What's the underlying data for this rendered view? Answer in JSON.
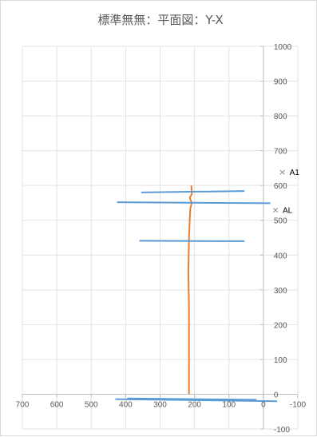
{
  "chart_data": {
    "type": "scatter",
    "title": "標準無無：平面図：Y-X",
    "xlabel": "",
    "ylabel": "",
    "xlim": [
      700,
      -100
    ],
    "ylim": [
      -100,
      1000
    ],
    "x_reversed": true,
    "x_ticks": [
      700,
      600,
      500,
      400,
      300,
      200,
      100,
      0,
      -100
    ],
    "y_ticks": [
      1000,
      900,
      800,
      700,
      600,
      500,
      400,
      300,
      200,
      100,
      0,
      -100
    ],
    "grid": true,
    "legend": "none",
    "series": [
      {
        "color": "#ED7D31",
        "points": [
          [
            209,
            600
          ],
          [
            208,
            575
          ],
          [
            214,
            565
          ],
          [
            208,
            550
          ],
          [
            212,
            535
          ],
          [
            214,
            500
          ],
          [
            216,
            450
          ],
          [
            217,
            400
          ],
          [
            218,
            350
          ],
          [
            217,
            300
          ],
          [
            216,
            250
          ],
          [
            216,
            200
          ],
          [
            216,
            150
          ],
          [
            216,
            100
          ],
          [
            216,
            50
          ],
          [
            216,
            0
          ]
        ]
      },
      {
        "color": "#5B9BD5",
        "segments": [
          [
            [
              355,
              580
            ],
            [
              55,
              584
            ]
          ],
          [
            [
              425,
              552
            ],
            [
              -20,
              549
            ]
          ],
          [
            [
              360,
              441
            ],
            [
              55,
              440
            ]
          ],
          [
            [
              430,
              -14
            ],
            [
              -40,
              -20
            ]
          ],
          [
            [
              395,
              -12
            ],
            [
              20,
              -16
            ]
          ]
        ]
      }
    ],
    "annotations": [
      {
        "label": "A1",
        "x": -55,
        "y": 640
      },
      {
        "label": "AL",
        "x": -35,
        "y": 530
      }
    ],
    "marker_symbol": "×"
  }
}
